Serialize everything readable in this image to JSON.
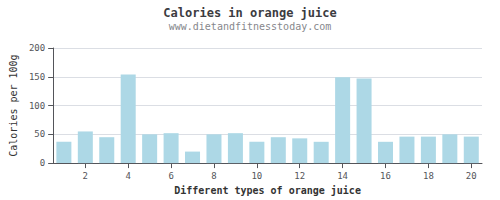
{
  "chart_data": {
    "type": "bar",
    "title": "Calories in orange juice",
    "subtitle": "www.dietandfitnesstoday.com",
    "xlabel": "Different types of orange juice",
    "ylabel": "Calories per 100g",
    "x": [
      1,
      2,
      3,
      4,
      5,
      6,
      7,
      8,
      9,
      10,
      11,
      12,
      13,
      14,
      15,
      16,
      17,
      18,
      19,
      20
    ],
    "values": [
      37,
      55,
      45,
      154,
      50,
      52,
      20,
      50,
      52,
      37,
      45,
      43,
      37,
      149,
      147,
      37,
      46,
      46,
      50,
      46
    ],
    "color": "#add8e6",
    "xlim": [
      0.5,
      20.5
    ],
    "xticks": [
      2,
      4,
      6,
      8,
      10,
      12,
      14,
      16,
      18,
      20
    ],
    "ylim": [
      0,
      200
    ],
    "yticks": [
      0,
      50,
      100,
      150,
      200
    ],
    "grid": true
  }
}
